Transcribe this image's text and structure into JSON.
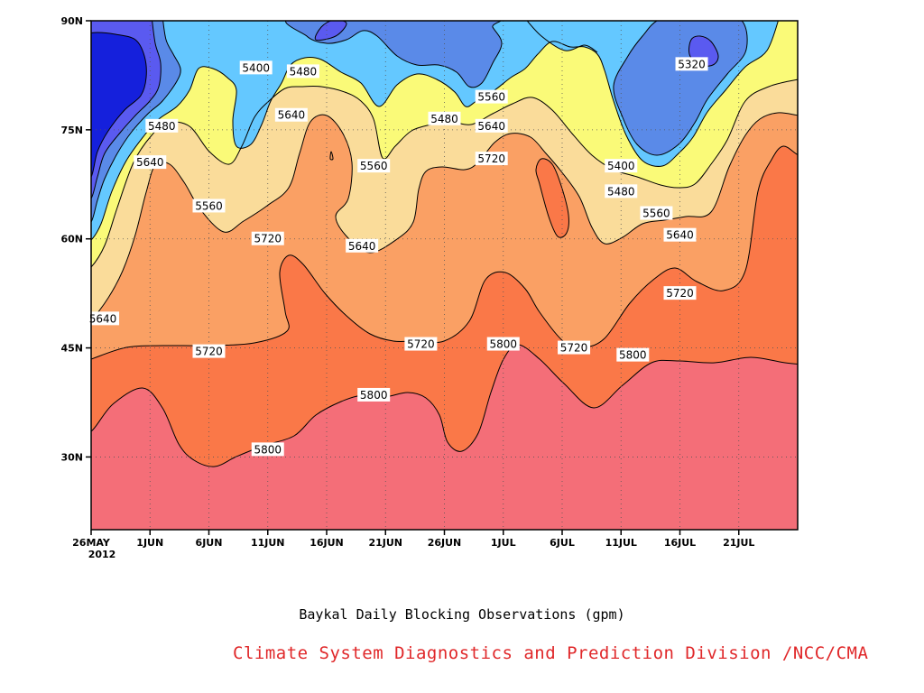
{
  "chart_data": {
    "type": "heatmap",
    "subtype": "filled-contour (latitude-time Hovmoller)",
    "xlabel": "",
    "ylabel": "",
    "x_ticks": [
      "26MAY",
      "1JUN",
      "6JUN",
      "11JUN",
      "16JUN",
      "21JUN",
      "26JUN",
      "1JUL",
      "6JUL",
      "11JUL",
      "16JUL",
      "21JUL"
    ],
    "x_year_label": "2012",
    "x_range": [
      "2012-05-26",
      "2012-07-25"
    ],
    "y_ticks": [
      "30N",
      "45N",
      "60N",
      "75N",
      "90N"
    ],
    "y_range": [
      20,
      90
    ],
    "grid": true,
    "contour_levels": [
      5320,
      5400,
      5480,
      5560,
      5640,
      5720,
      5800
    ],
    "fill_colors": {
      "below_5320": "#1520dc",
      "5320_5400": "#5a5af0",
      "5400_5480": "#5a8ae8",
      "5480_5560": "#64c8ff",
      "5560_5640": "#fafa78",
      "5640_5720": "#fadc9a",
      "5720_5800": "#faa064",
      "5800_5880": "#fa7848",
      "above_5880": "#f46e78"
    },
    "contour_labels": [
      {
        "text": "5400",
        "date": "2012-06-09",
        "lat": 83.5
      },
      {
        "text": "5480",
        "date": "2012-06-13",
        "lat": 83
      },
      {
        "text": "5320",
        "date": "2012-07-16",
        "lat": 84
      },
      {
        "text": "5480",
        "date": "2012-06-01",
        "lat": 75.5
      },
      {
        "text": "5480",
        "date": "2012-06-25",
        "lat": 76.5
      },
      {
        "text": "5560",
        "date": "2012-06-29",
        "lat": 79.5
      },
      {
        "text": "5640",
        "date": "2012-06-12",
        "lat": 77
      },
      {
        "text": "5640",
        "date": "2012-06-29",
        "lat": 75.5
      },
      {
        "text": "5400",
        "date": "2012-07-10",
        "lat": 70
      },
      {
        "text": "5720",
        "date": "2012-06-29",
        "lat": 71
      },
      {
        "text": "5640",
        "date": "2012-05-31",
        "lat": 70.5
      },
      {
        "text": "5560",
        "date": "2012-06-19",
        "lat": 70
      },
      {
        "text": "5480",
        "date": "2012-07-10",
        "lat": 66.5
      },
      {
        "text": "5560",
        "date": "2012-06-05",
        "lat": 64.5
      },
      {
        "text": "5560",
        "date": "2012-07-13",
        "lat": 63.5
      },
      {
        "text": "5720",
        "date": "2012-06-10",
        "lat": 60
      },
      {
        "text": "5640",
        "date": "2012-06-18",
        "lat": 59
      },
      {
        "text": "5640",
        "date": "2012-07-15",
        "lat": 60.5
      },
      {
        "text": "5720",
        "date": "2012-07-15",
        "lat": 52.5
      },
      {
        "text": "5640",
        "date": "2012-05-27",
        "lat": 49
      },
      {
        "text": "5720",
        "date": "2012-06-05",
        "lat": 44.5
      },
      {
        "text": "5720",
        "date": "2012-06-23",
        "lat": 45.5
      },
      {
        "text": "5800",
        "date": "2012-06-30",
        "lat": 45.5
      },
      {
        "text": "5720",
        "date": "2012-07-06",
        "lat": 45
      },
      {
        "text": "5800",
        "date": "2012-07-11",
        "lat": 44
      },
      {
        "text": "5800",
        "date": "2012-06-19",
        "lat": 38.5
      },
      {
        "text": "5800",
        "date": "2012-06-10",
        "lat": 31
      }
    ]
  },
  "caption": "Baykal Daily Blocking Observations (gpm)",
  "credit": "Climate System Diagnostics and Prediction Division /NCC/CMA"
}
